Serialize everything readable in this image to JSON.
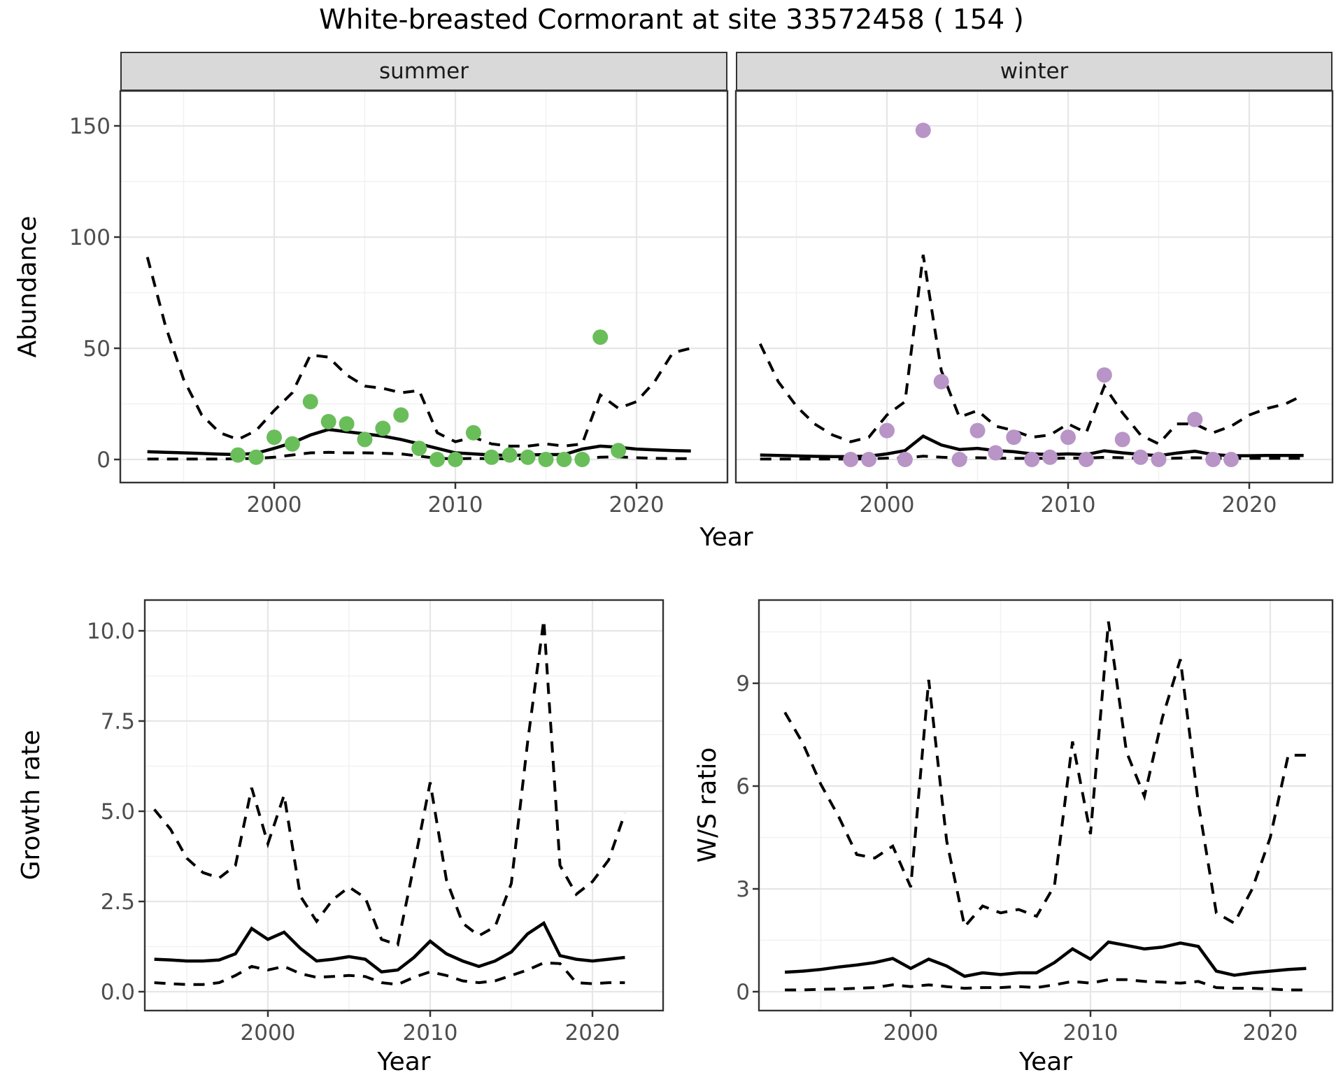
{
  "title": "White-breasted Cormorant at site 33572458 ( 154 )",
  "facets": [
    {
      "label": "summer"
    },
    {
      "label": "winter"
    }
  ],
  "axes": {
    "y_top": "Abundance",
    "y_bottom_left": "Growth rate",
    "y_bottom_right": "W/S ratio",
    "x": "Year",
    "year_tick_labels": [
      "2000",
      "2010",
      "2020"
    ],
    "year_tick_values": [
      2000,
      2010,
      2020
    ],
    "abundance_tick_labels": [
      "0",
      "50",
      "100",
      "150"
    ],
    "growth_tick_labels": [
      "0.0",
      "2.5",
      "5.0",
      "7.5",
      "10.0"
    ],
    "ws_tick_labels": [
      "0",
      "3",
      "6",
      "9"
    ]
  },
  "colors": {
    "summer_point": "#69be5a",
    "winter_point": "#b894c7",
    "line": "#000000",
    "strip_bg": "#d9d9d9",
    "grid_major": "#e6e6e6",
    "grid_minor": "#f1f1f1",
    "tick_text": "#4d4d4d",
    "border": "#333333"
  },
  "chart_data": [
    {
      "type": "line",
      "panel": "abundance_summer",
      "facet": "summer",
      "xlabel": "Year",
      "ylabel": "Abundance",
      "x_range": [
        1991.5,
        2024.5
      ],
      "yticks": [
        0,
        50,
        100,
        150
      ],
      "x": [
        1993,
        1994,
        1995,
        1996,
        1997,
        1998,
        1999,
        2000,
        2001,
        2002,
        2003,
        2004,
        2005,
        2006,
        2007,
        2008,
        2009,
        2010,
        2011,
        2012,
        2013,
        2014,
        2015,
        2016,
        2017,
        2018,
        2019,
        2020,
        2021,
        2022,
        2023
      ],
      "series": [
        {
          "name": "upper_ci",
          "style": "dashed",
          "values": [
            91,
            60,
            36,
            20,
            12,
            9,
            13,
            22,
            30,
            47,
            46,
            38,
            33,
            32,
            30,
            31,
            12,
            8,
            10,
            7,
            6,
            6,
            7,
            6,
            7,
            29,
            23,
            26,
            35,
            48,
            50
          ]
        },
        {
          "name": "median",
          "style": "solid",
          "values": [
            3.5,
            3.2,
            3.0,
            2.7,
            2.4,
            2.2,
            2.8,
            5,
            7.5,
            11,
            13.5,
            12.5,
            11.5,
            10.5,
            9,
            7,
            5,
            3,
            2.5,
            2,
            1.8,
            2,
            2.2,
            2.2,
            4.7,
            6,
            5.5,
            4.7,
            4.3,
            4,
            3.8
          ]
        },
        {
          "name": "lower_ci",
          "style": "dashed",
          "values": [
            0.2,
            0.2,
            0.2,
            0.2,
            0.2,
            0.3,
            0.5,
            1,
            2,
            3,
            3.2,
            3,
            3,
            2.8,
            2.5,
            1.5,
            0.5,
            0.3,
            0.5,
            0.3,
            0.3,
            0.3,
            0.4,
            0.4,
            0.5,
            1,
            1.2,
            0.8,
            0.5,
            0.4,
            0.4
          ]
        }
      ],
      "observed_points": {
        "years": [
          1998,
          1999,
          2000,
          2001,
          2002,
          2003,
          2004,
          2005,
          2006,
          2007,
          2008,
          2009,
          2010,
          2011,
          2012,
          2013,
          2014,
          2015,
          2016,
          2017,
          2018,
          2019
        ],
        "values": [
          2,
          1,
          10,
          7,
          26,
          17,
          16,
          9,
          14,
          20,
          5,
          0,
          0,
          12,
          1,
          2,
          1,
          0,
          0,
          0,
          55,
          4
        ]
      }
    },
    {
      "type": "line",
      "panel": "abundance_winter",
      "facet": "winter",
      "xlabel": "Year",
      "ylabel": "Abundance",
      "x_range": [
        1991.5,
        2024.5
      ],
      "yticks": [
        0,
        50,
        100,
        150
      ],
      "x": [
        1993,
        1994,
        1995,
        1996,
        1997,
        1998,
        1999,
        2000,
        2001,
        2002,
        2003,
        2004,
        2005,
        2006,
        2007,
        2008,
        2009,
        2010,
        2011,
        2012,
        2013,
        2014,
        2015,
        2016,
        2017,
        2018,
        2019,
        2020,
        2021,
        2022,
        2023
      ],
      "series": [
        {
          "name": "upper_ci",
          "style": "dashed",
          "values": [
            52,
            35,
            24,
            16,
            11,
            8,
            10,
            20,
            26,
            92,
            40,
            19,
            22,
            15,
            13,
            10,
            11,
            16,
            12,
            33,
            21,
            11,
            7,
            16,
            16,
            12,
            15,
            20,
            23,
            25,
            29
          ]
        },
        {
          "name": "median",
          "style": "solid",
          "values": [
            2,
            1.8,
            1.6,
            1.4,
            1.3,
            1.3,
            1.5,
            2.5,
            4,
            10.5,
            6.5,
            4.5,
            5,
            4,
            3.5,
            2.5,
            2.2,
            2.5,
            2.2,
            3.9,
            3,
            2.3,
            1.7,
            2.9,
            3.7,
            2.2,
            1.7,
            1.7,
            1.8,
            1.8,
            1.8
          ]
        },
        {
          "name": "lower_ci",
          "style": "dashed",
          "values": [
            0.2,
            0.2,
            0.2,
            0.2,
            0.2,
            0.2,
            0.3,
            0.6,
            0.6,
            1.5,
            1,
            0.7,
            0.8,
            0.6,
            0.5,
            0.5,
            0.5,
            0.6,
            0.6,
            1,
            0.8,
            0.6,
            0.5,
            0.6,
            0.8,
            0.6,
            0.5,
            0.5,
            0.5,
            0.5,
            0.5
          ]
        }
      ],
      "observed_points": {
        "years": [
          1998,
          1999,
          2000,
          2001,
          2002,
          2003,
          2004,
          2005,
          2006,
          2007,
          2008,
          2009,
          2010,
          2011,
          2012,
          2013,
          2014,
          2015,
          2017,
          2018,
          2019
        ],
        "values": [
          0,
          0,
          13,
          0,
          148,
          35,
          0,
          13,
          3,
          10,
          0,
          1,
          10,
          0,
          38,
          9,
          1,
          0,
          18,
          0,
          0
        ]
      }
    },
    {
      "type": "line",
      "panel": "growth_rate",
      "xlabel": "Year",
      "ylabel": "Growth rate",
      "x_range": [
        1991.5,
        2023.5
      ],
      "yticks": [
        0,
        2.5,
        5,
        7.5,
        10
      ],
      "x": [
        1993,
        1994,
        1995,
        1996,
        1997,
        1998,
        1999,
        2000,
        2001,
        2002,
        2003,
        2004,
        2005,
        2006,
        2007,
        2008,
        2009,
        2010,
        2011,
        2012,
        2013,
        2014,
        2015,
        2016,
        2017,
        2018,
        2019,
        2020,
        2021,
        2022
      ],
      "series": [
        {
          "name": "upper_ci",
          "style": "dashed",
          "values": [
            5.05,
            4.5,
            3.7,
            3.3,
            3.15,
            3.5,
            5.65,
            4.1,
            5.45,
            2.65,
            1.95,
            2.55,
            2.9,
            2.6,
            1.45,
            1.3,
            3.5,
            5.8,
            3.1,
            1.9,
            1.55,
            1.8,
            3.0,
            6.9,
            10.3,
            3.5,
            2.7,
            3.05,
            3.65,
            4.95
          ]
        },
        {
          "name": "median",
          "style": "solid",
          "values": [
            0.9,
            0.88,
            0.85,
            0.85,
            0.88,
            1.05,
            1.75,
            1.45,
            1.65,
            1.2,
            0.85,
            0.9,
            0.97,
            0.9,
            0.55,
            0.6,
            0.95,
            1.4,
            1.05,
            0.85,
            0.7,
            0.85,
            1.1,
            1.6,
            1.9,
            1.0,
            0.9,
            0.85,
            0.9,
            0.95
          ]
        },
        {
          "name": "lower_ci",
          "style": "dashed",
          "values": [
            0.25,
            0.22,
            0.2,
            0.2,
            0.25,
            0.45,
            0.7,
            0.6,
            0.7,
            0.5,
            0.4,
            0.42,
            0.45,
            0.42,
            0.25,
            0.2,
            0.4,
            0.55,
            0.45,
            0.3,
            0.25,
            0.3,
            0.45,
            0.6,
            0.8,
            0.78,
            0.25,
            0.22,
            0.25,
            0.25
          ]
        }
      ]
    },
    {
      "type": "line",
      "panel": "ws_ratio",
      "xlabel": "Year",
      "ylabel": "W/S ratio",
      "x_range": [
        1991.5,
        2023.5
      ],
      "yticks": [
        0,
        3,
        6,
        9
      ],
      "x": [
        1993,
        1994,
        1995,
        1996,
        1997,
        1998,
        1999,
        2000,
        2001,
        2002,
        2003,
        2004,
        2005,
        2006,
        2007,
        2008,
        2009,
        2010,
        2011,
        2012,
        2013,
        2014,
        2015,
        2016,
        2017,
        2018,
        2019,
        2020,
        2021,
        2022
      ],
      "series": [
        {
          "name": "upper_ci",
          "style": "dashed",
          "values": [
            8.15,
            7.25,
            6.05,
            5.1,
            4.0,
            3.9,
            4.25,
            3.05,
            9.1,
            4.4,
            1.9,
            2.5,
            2.3,
            2.4,
            2.2,
            3.1,
            7.3,
            4.6,
            10.8,
            7.0,
            5.7,
            8.0,
            9.7,
            5.5,
            2.3,
            2.0,
            3.0,
            4.5,
            6.9,
            6.9
          ]
        },
        {
          "name": "median",
          "style": "solid",
          "values": [
            0.57,
            0.6,
            0.65,
            0.72,
            0.78,
            0.85,
            0.97,
            0.68,
            0.95,
            0.75,
            0.45,
            0.55,
            0.5,
            0.55,
            0.55,
            0.85,
            1.25,
            0.95,
            1.45,
            1.35,
            1.25,
            1.3,
            1.42,
            1.32,
            0.6,
            0.48,
            0.55,
            0.6,
            0.65,
            0.68
          ]
        },
        {
          "name": "lower_ci",
          "style": "dashed",
          "values": [
            0.05,
            0.05,
            0.07,
            0.08,
            0.1,
            0.12,
            0.2,
            0.15,
            0.2,
            0.15,
            0.1,
            0.12,
            0.12,
            0.15,
            0.12,
            0.2,
            0.3,
            0.25,
            0.35,
            0.35,
            0.3,
            0.28,
            0.25,
            0.3,
            0.12,
            0.1,
            0.1,
            0.08,
            0.05,
            0.05
          ]
        }
      ]
    }
  ]
}
